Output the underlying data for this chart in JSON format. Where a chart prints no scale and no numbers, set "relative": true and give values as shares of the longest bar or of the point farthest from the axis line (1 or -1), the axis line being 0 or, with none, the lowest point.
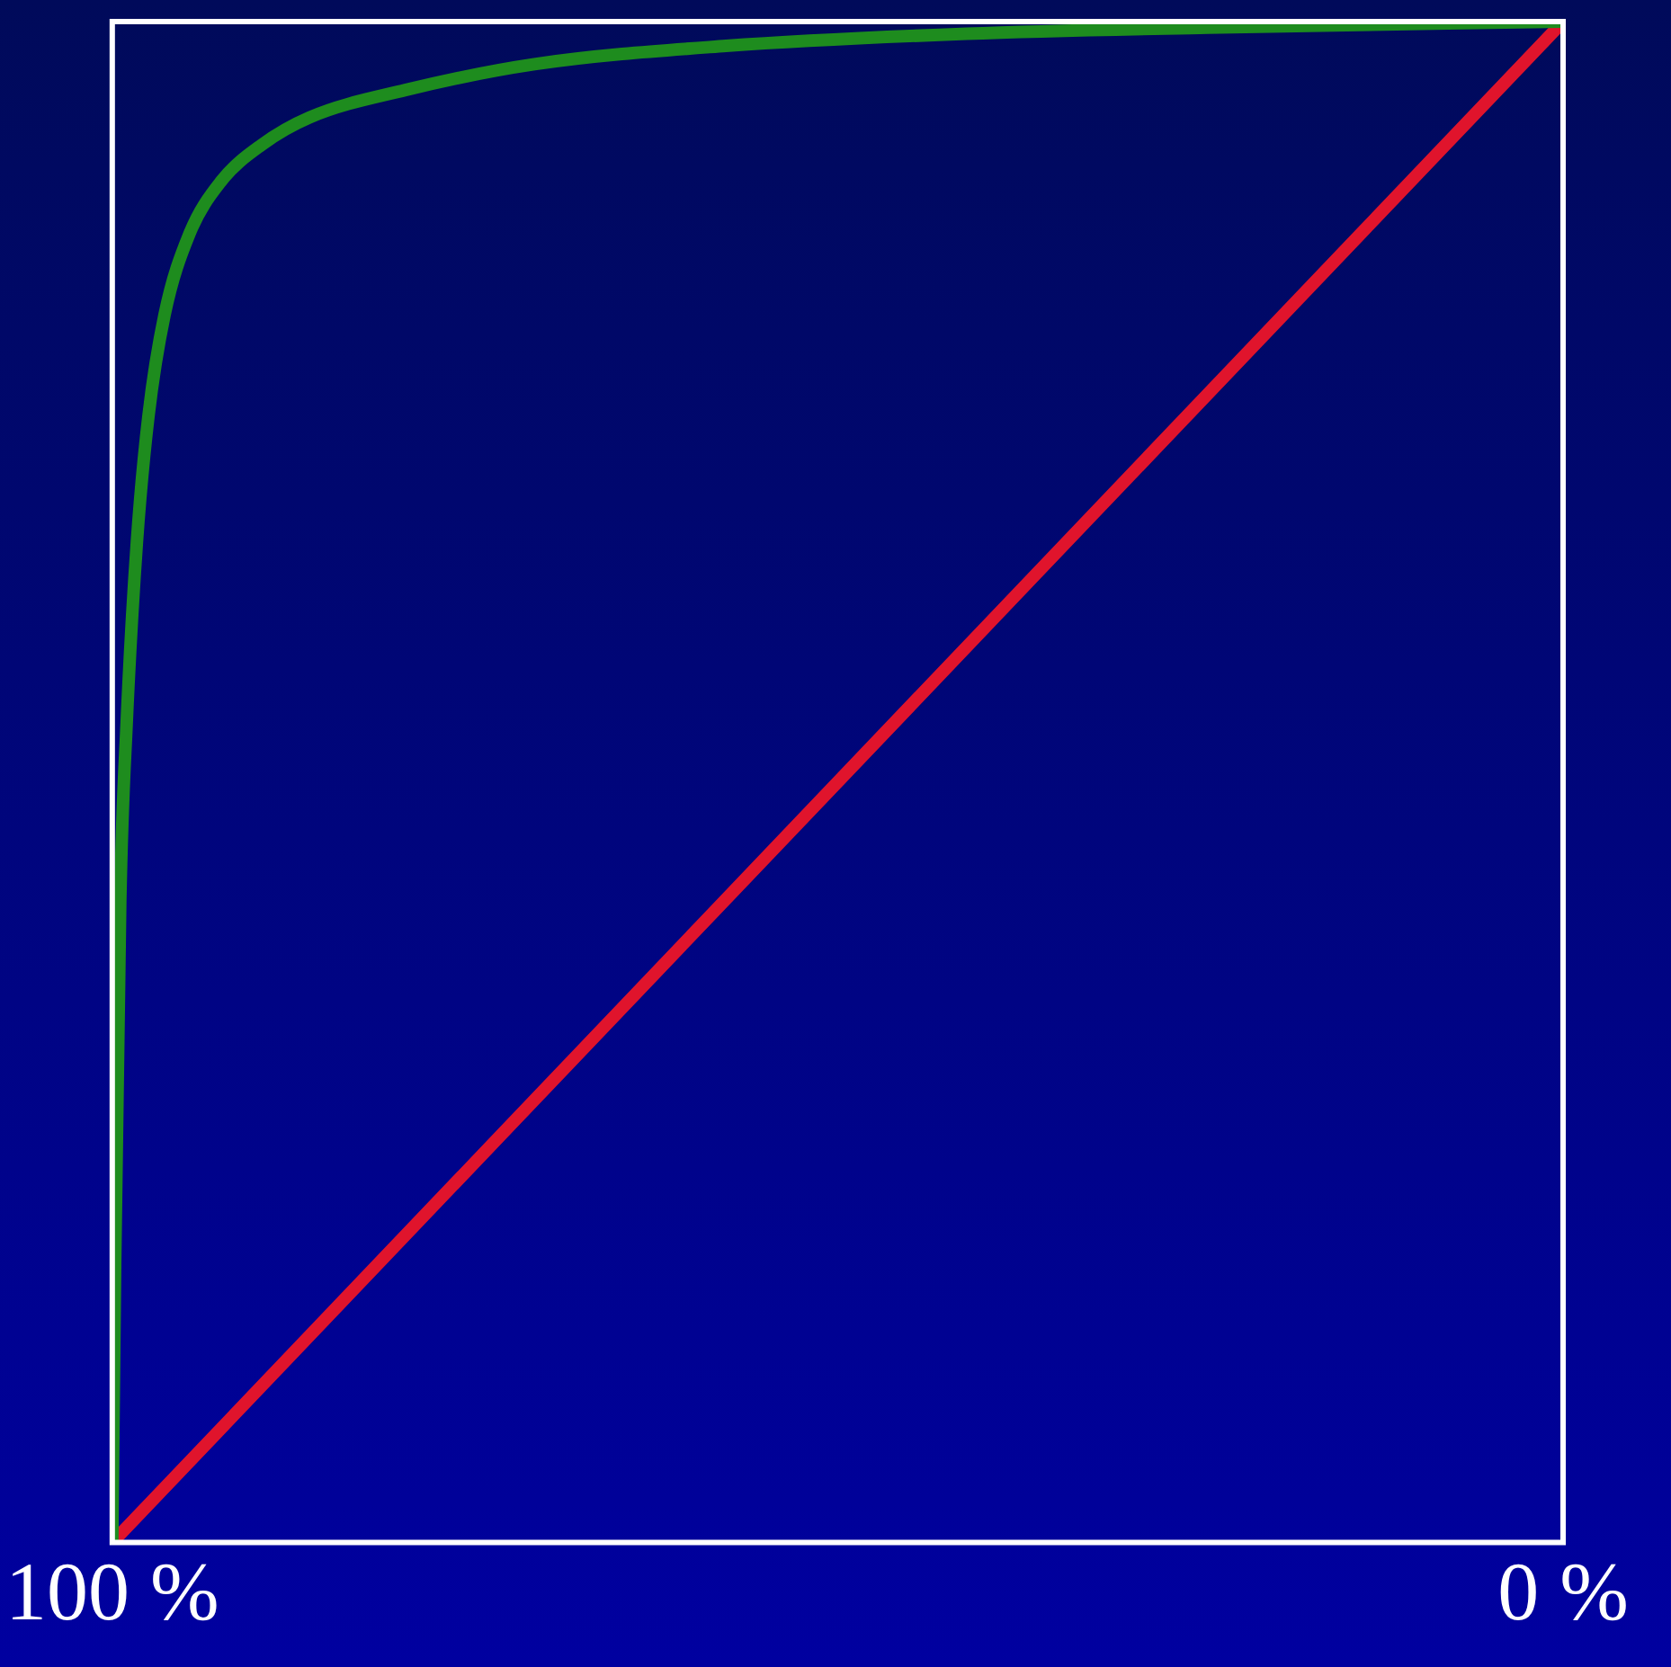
{
  "chart_data": {
    "type": "line",
    "relative": true,
    "xlim": [
      100,
      0
    ],
    "xticks": [
      {
        "value": 100,
        "label": "100 %"
      },
      {
        "value": 0,
        "label": "0 %"
      }
    ],
    "legend": false,
    "marker": "none",
    "line_style": "solid",
    "series": [
      {
        "color": "#1e8c1e",
        "x": [
          100,
          99.8,
          99.45,
          99.0,
          98.3,
          97.5,
          96.4,
          94.7,
          92.5,
          89.7,
          86.4,
          79.8,
          70.9,
          57.7,
          41.1,
          24.5,
          0
        ],
        "values": [
          0,
          0.184,
          0.421,
          0.54,
          0.658,
          0.741,
          0.807,
          0.86,
          0.895,
          0.919,
          0.937,
          0.955,
          0.972,
          0.984,
          0.992,
          0.996,
          1
        ]
      },
      {
        "color": "#e0142c",
        "x": [
          100,
          0
        ],
        "values": [
          0,
          1
        ]
      }
    ]
  }
}
